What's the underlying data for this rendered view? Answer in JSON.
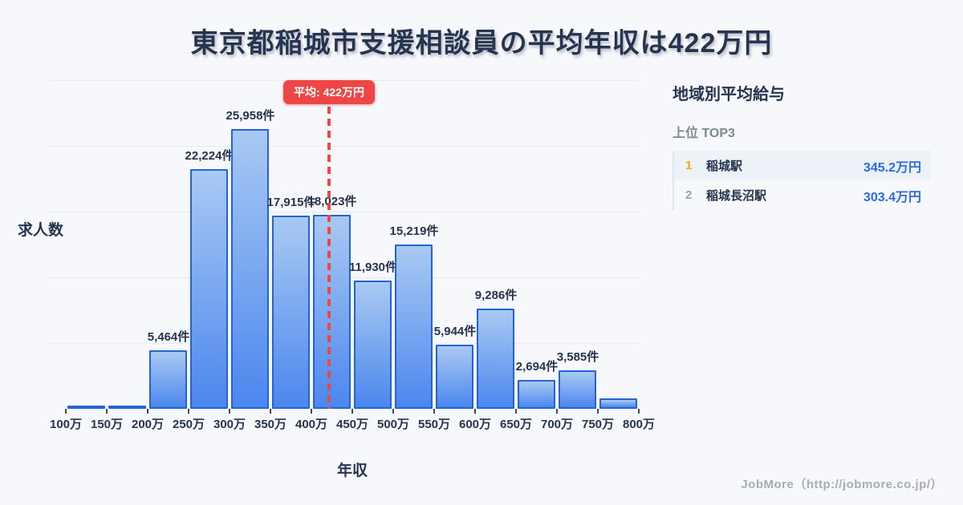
{
  "title": "東京都稲城市支援相談員の平均年収は422万円",
  "chart_data": {
    "type": "bar",
    "title": "東京都稲城市支援相談員の平均年収は422万円",
    "xlabel": "年収",
    "ylabel": "求人数",
    "unit": "件",
    "x_tick_labels": [
      "100万",
      "150万",
      "200万",
      "250万",
      "300万",
      "350万",
      "400万",
      "450万",
      "500万",
      "550万",
      "600万",
      "650万",
      "700万",
      "750万",
      "800万"
    ],
    "bin_edges_万円": [
      100,
      150,
      200,
      250,
      300,
      350,
      400,
      450,
      500,
      550,
      600,
      650,
      700,
      750,
      800
    ],
    "values": [
      250,
      280,
      5464,
      22224,
      25958,
      17915,
      18023,
      11930,
      15219,
      5944,
      9286,
      2694,
      3585,
      950
    ],
    "bar_labels": [
      "",
      "",
      "5,464件",
      "22,224件",
      "25,958件",
      "17,915件",
      "18,023件",
      "11,930件",
      "15,219件",
      "5,944件",
      "9,286件",
      "2,694件",
      "3,585件",
      ""
    ],
    "unlabeled_bin_values_estimated": [
      0,
      1,
      13
    ],
    "average_line": {
      "label": "平均: 422万円",
      "x_value": 422
    },
    "x_range": [
      100,
      800
    ],
    "ylim": [
      0,
      30500
    ],
    "grid": true,
    "legend": null
  },
  "panel": {
    "title": "地域別平均給与",
    "subtitle": "上位 TOP3",
    "rows": [
      {
        "rank": "1",
        "name": "稲城駅",
        "value": "345.2万円"
      },
      {
        "rank": "2",
        "name": "稲城長沼駅",
        "value": "303.4万円"
      }
    ]
  },
  "footer": {
    "credit": "JobMore（http://jobmore.co.jp/）"
  },
  "colors": {
    "background": "#f7f8fb",
    "text_dark": "#263450",
    "bar_fill_top": "#a9c9f2",
    "bar_fill_bottom": "#4c87ee",
    "bar_border": "#2263d8",
    "average_red": "#ee4545",
    "gridline": "#e7eaf1",
    "value_blue": "#2c6be5",
    "rank1_amber": "#f0ac00",
    "rank2_gray": "#9aa4b0",
    "subtitle_gray": "#7c8894",
    "footer_gray": "#a6acb5",
    "row_alt_bg": "#edf2f9"
  }
}
